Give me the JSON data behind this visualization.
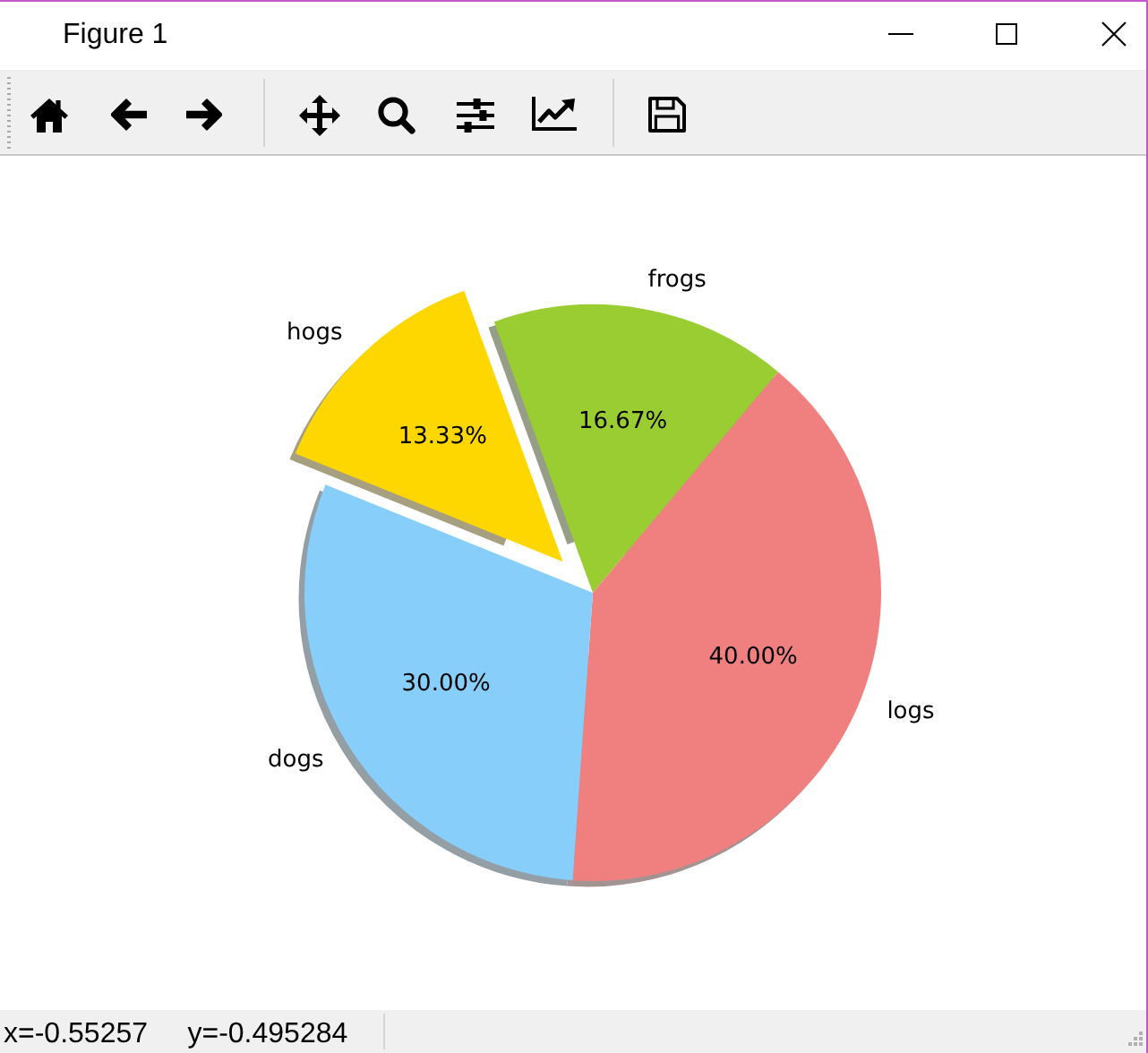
{
  "chart_data": {
    "type": "pie",
    "categories": [
      "frogs",
      "logs",
      "dogs",
      "hogs"
    ],
    "values": [
      16.67,
      40,
      30,
      13.33
    ],
    "colors": [
      "#9acd32",
      "#f08080",
      "#87cefa",
      "#ffd700"
    ],
    "value_labels": [
      "16.67%",
      "40.00%",
      "30.00%",
      "13.33%"
    ],
    "annotations": [
      "Figure 1",
      "x=-0.55257     y=-0.495284"
    ]
  }
}
